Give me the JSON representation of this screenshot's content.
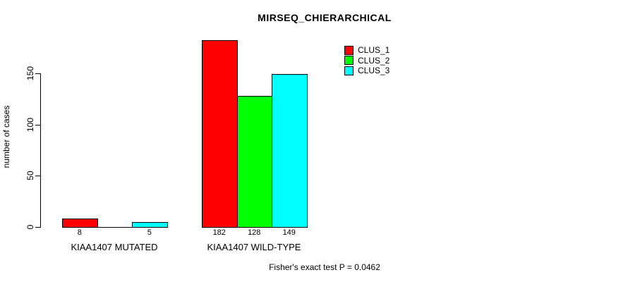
{
  "title": "MIRSEQ_CHIERARCHICAL",
  "footer_note": "Fisher's exact test P = 0.0462",
  "chart_data": {
    "type": "bar",
    "title": "MIRSEQ_CHIERARCHICAL",
    "xlabel": "",
    "ylabel": "number of cases",
    "categories": [
      "KIAA1407 MUTATED",
      "KIAA1407 WILD-TYPE"
    ],
    "series": [
      {
        "name": "CLUS_1",
        "color": "#ff0000",
        "values": [
          8,
          182
        ]
      },
      {
        "name": "CLUS_2",
        "color": "#00ff00",
        "values": [
          0,
          128
        ]
      },
      {
        "name": "CLUS_3",
        "color": "#00ffff",
        "values": [
          5,
          149
        ]
      }
    ],
    "bar_value_labels": [
      [
        "8",
        "",
        "5"
      ],
      [
        "182",
        "128",
        "149"
      ]
    ],
    "yticks": [
      0,
      50,
      100,
      150
    ],
    "ylim": [
      0,
      150
    ],
    "grid": false,
    "legend_position": "top-right",
    "annotation": "Fisher's exact test P = 0.0462"
  }
}
